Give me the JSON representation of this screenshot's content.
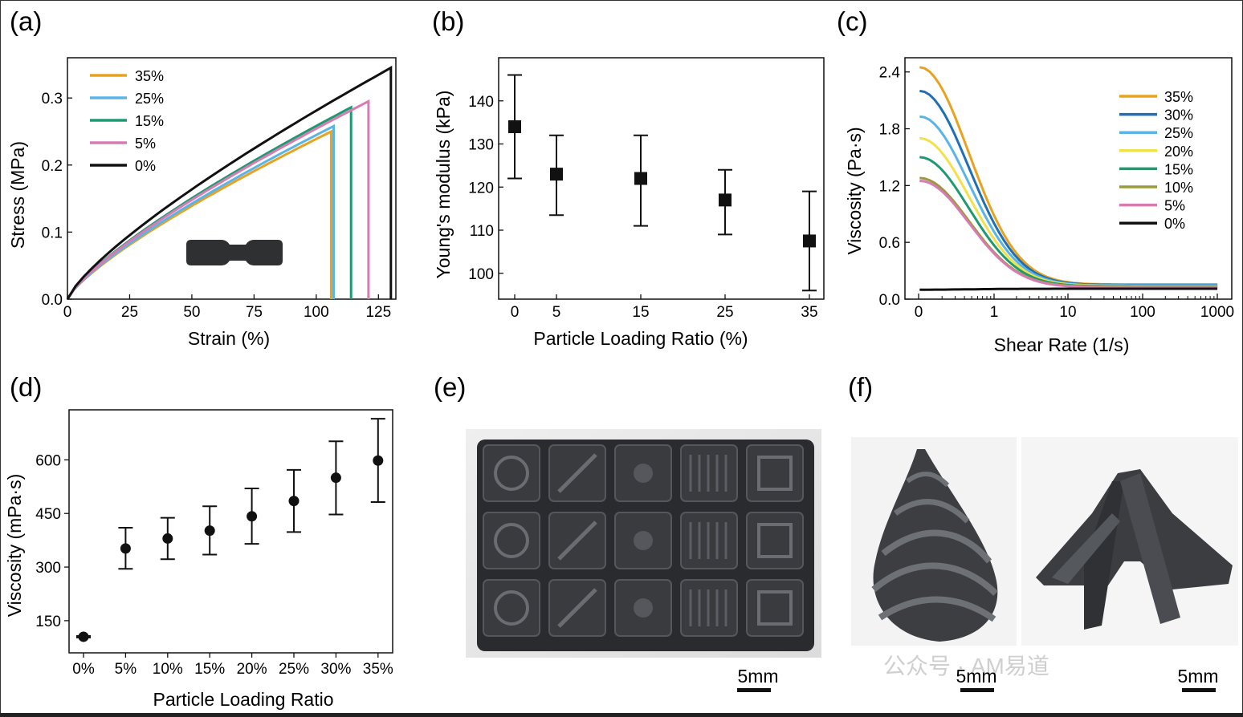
{
  "panels": {
    "a": {
      "label": "(a)"
    },
    "b": {
      "label": "(b)"
    },
    "c": {
      "label": "(c)"
    },
    "d": {
      "label": "(d)"
    },
    "e": {
      "label": "(e)",
      "scale_bar": "5mm"
    },
    "f": {
      "label": "(f)",
      "scale_bars": [
        "5mm",
        "5mm"
      ]
    }
  },
  "watermark": "公众号 · AM易道",
  "colors": {
    "35%": "#e8a21f",
    "30%": "#1f6fb6",
    "25%": "#5ab4e8",
    "20%": "#f2e14a",
    "15%": "#1e9a72",
    "10%": "#9a9a3a",
    "5%": "#d77bb2",
    "0%": "#111111"
  },
  "chart_data": [
    {
      "id": "a",
      "type": "line",
      "xlabel": "Strain (%)",
      "ylabel": "Stress (MPa)",
      "xlim": [
        0,
        132
      ],
      "ylim": [
        0,
        0.36
      ],
      "xticks": [
        "0",
        "25",
        "50",
        "75",
        "100",
        "125"
      ],
      "yticks": [
        "0.0",
        "0.1",
        "0.2",
        "0.3"
      ],
      "series": [
        {
          "name": "35%",
          "break_strain": 106,
          "max_stress": 0.25
        },
        {
          "name": "25%",
          "break_strain": 107,
          "max_stress": 0.258
        },
        {
          "name": "15%",
          "break_strain": 114,
          "max_stress": 0.286
        },
        {
          "name": "5%",
          "break_strain": 121,
          "max_stress": 0.295
        },
        {
          "name": "0%",
          "break_strain": 130,
          "max_stress": 0.345
        }
      ]
    },
    {
      "id": "b",
      "type": "scatter",
      "xlabel": "Particle Loading Ratio (%)",
      "ylabel": "Young's modulus (kPa)",
      "ylim": [
        94,
        150
      ],
      "xticks": [
        "0",
        "5",
        "15",
        "25",
        "35"
      ],
      "yticks": [
        "100",
        "110",
        "120",
        "130",
        "140"
      ],
      "x": [
        0,
        5,
        15,
        25,
        35
      ],
      "values": [
        134,
        123,
        122,
        117,
        107.5
      ],
      "err_low": [
        122,
        113.5,
        111,
        109,
        96
      ],
      "err_high": [
        146,
        132,
        132,
        124,
        119
      ]
    },
    {
      "id": "c",
      "type": "line",
      "xscale": "log",
      "xlabel": "Shear Rate (1/s)",
      "ylabel": "Viscosity (Pa·s)",
      "ylim": [
        0,
        2.55
      ],
      "xticks": [
        "0",
        "1",
        "10",
        "100",
        "1000"
      ],
      "yticks": [
        "0.0",
        "0.6",
        "1.2",
        "1.8",
        "2.4"
      ],
      "series": [
        {
          "name": "35%",
          "initial": 2.45,
          "final": 0.155
        },
        {
          "name": "30%",
          "initial": 2.2,
          "final": 0.15
        },
        {
          "name": "25%",
          "initial": 1.93,
          "final": 0.145
        },
        {
          "name": "20%",
          "initial": 1.7,
          "final": 0.14
        },
        {
          "name": "15%",
          "initial": 1.5,
          "final": 0.135
        },
        {
          "name": "10%",
          "initial": 1.28,
          "final": 0.13
        },
        {
          "name": "5%",
          "initial": 1.25,
          "final": 0.125
        },
        {
          "name": "0%",
          "initial": 0.1,
          "final": 0.11
        }
      ]
    },
    {
      "id": "d",
      "type": "scatter",
      "xlabel": "Particle Loading Ratio",
      "ylabel": "Viscosity (mPa·s)",
      "ylim": [
        60,
        740
      ],
      "categories": [
        "0%",
        "5%",
        "10%",
        "15%",
        "20%",
        "25%",
        "30%",
        "35%"
      ],
      "yticks": [
        "150",
        "300",
        "450",
        "600"
      ],
      "values": [
        105,
        352,
        380,
        402,
        442,
        485,
        550,
        598
      ],
      "err_low": [
        103,
        295,
        322,
        335,
        365,
        398,
        447,
        482
      ],
      "err_high": [
        107,
        410,
        438,
        470,
        520,
        572,
        652,
        715
      ]
    }
  ]
}
